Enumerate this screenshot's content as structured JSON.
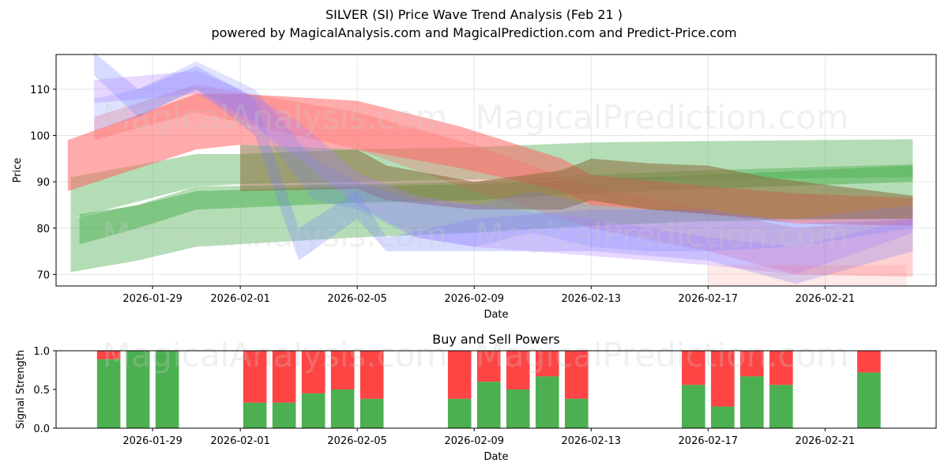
{
  "title": "SILVER (SI) Price Wave Trend Analysis (Feb 21 )",
  "subtitle": "powered by MagicalAnalysis.com and MagicalPrediction.com and Predict-Price.com",
  "watermarks": {
    "left": "MagicalAnalysis.com",
    "right": "MagicalPrediction.com"
  },
  "colors": {
    "green": "#4caf50",
    "red": "#ff4444",
    "band_green": "#4caf50",
    "band_red": "#ff6666",
    "band_brown": "#8b6b3a",
    "band_blue": "#6e7fff",
    "band_purple": "#b27fff",
    "grid": "#e6e6e6"
  },
  "chart_data": [
    {
      "type": "area",
      "title": "SILVER (SI) Price Wave Trend Analysis (Feb 21 )",
      "xlabel": "Date",
      "ylabel": "Price",
      "x_tick_labels": [
        "2026-01-29",
        "2026-02-01",
        "2026-02-05",
        "2026-02-09",
        "2026-02-13",
        "2026-02-17",
        "2026-02-21"
      ],
      "x_tick_days": [
        3,
        6,
        10,
        14,
        18,
        22,
        26
      ],
      "y_ticks": [
        70,
        80,
        90,
        100,
        110
      ],
      "xlim_days": [
        -0.3,
        29.8
      ],
      "ylim": [
        67.5,
        117.5
      ],
      "x_day0": "2026-01-26",
      "series": [
        {
          "name": "green-wide-upper",
          "color": "green",
          "opacity": 0.42,
          "x": [
            0.2,
            4.5,
            6,
            10,
            14,
            18,
            22,
            29
          ],
          "upper": [
            91,
            96,
            96,
            97,
            97.5,
            98.5,
            98.8,
            99.2
          ],
          "lower": [
            82,
            89,
            89.5,
            90,
            90.5,
            90.5,
            90.5,
            91
          ]
        },
        {
          "name": "green-wide-lower",
          "color": "green",
          "opacity": 0.42,
          "x": [
            0.2,
            2.5,
            4.5,
            10,
            14,
            18,
            22,
            29
          ],
          "upper": [
            82,
            85,
            89,
            89.5,
            90,
            91.5,
            92.5,
            93.8
          ],
          "lower": [
            70.5,
            73,
            76,
            78,
            79,
            80.5,
            81.5,
            82
          ]
        },
        {
          "name": "green-mid",
          "color": "green",
          "opacity": 0.5,
          "x": [
            0.5,
            2.5,
            4.5,
            10,
            14,
            18,
            22,
            29
          ],
          "upper": [
            83,
            85,
            88,
            89,
            89.5,
            90.5,
            91.5,
            93.5
          ],
          "lower": [
            76.5,
            80,
            84,
            85.5,
            86,
            87.5,
            88.5,
            90
          ]
        },
        {
          "name": "red-high",
          "color": "band_red",
          "opacity": 0.55,
          "x": [
            0.1,
            4.5,
            6,
            10,
            13.5,
            17,
            18,
            22,
            25,
            29
          ],
          "upper": [
            99,
            109,
            109,
            107.5,
            102,
            95,
            91.5,
            89,
            87.5,
            86.5
          ],
          "lower": [
            88,
            97,
            98,
            97,
            93,
            88,
            85,
            83,
            81,
            80.5
          ]
        },
        {
          "name": "red-low",
          "color": "band_red",
          "opacity": 0.3,
          "x": [
            1,
            4.5,
            10,
            14,
            18,
            22,
            25,
            29
          ],
          "upper": [
            104,
            111,
            105,
            98,
            89,
            84,
            80,
            82
          ],
          "lower": [
            99,
            105,
            97,
            88,
            80,
            75,
            70,
            69.5
          ]
        },
        {
          "name": "brown",
          "color": "band_brown",
          "opacity": 0.55,
          "x": [
            6,
            10,
            11,
            14,
            17,
            18,
            20,
            22,
            24,
            29
          ],
          "upper": [
            98,
            97,
            93.5,
            90,
            92.5,
            95,
            94,
            93.5,
            91,
            87
          ],
          "lower": [
            88,
            88.5,
            86,
            84,
            84,
            86,
            84,
            83,
            82,
            82
          ]
        },
        {
          "name": "blue-drop",
          "color": "band_blue",
          "opacity": 0.28,
          "x": [
            1,
            2.5,
            4.5,
            6.5,
            8,
            10,
            11,
            14,
            18,
            22,
            25,
            29
          ],
          "upper": [
            118,
            110,
            115,
            108,
            80,
            88,
            78,
            82,
            84,
            84,
            81,
            82
          ],
          "lower": [
            113,
            104,
            110,
            100,
            73,
            82,
            75,
            75,
            75,
            73,
            68,
            75
          ]
        },
        {
          "name": "purple",
          "color": "band_purple",
          "opacity": 0.3,
          "x": [
            1,
            4.5,
            6,
            8,
            10,
            12,
            14,
            18,
            20,
            22,
            25,
            29
          ],
          "upper": [
            112,
            114,
            110,
            103,
            92,
            87,
            85,
            82,
            80,
            78,
            76,
            82
          ],
          "lower": [
            107,
            109,
            104,
            95,
            85,
            78,
            76,
            74,
            73,
            72,
            70,
            79
          ]
        },
        {
          "name": "grey-cluster",
          "color": "band_blue",
          "opacity": 0.22,
          "x": [
            1,
            2.5,
            4.5,
            6.5,
            8.5,
            10,
            12,
            14,
            16,
            18,
            20,
            22,
            25,
            29
          ],
          "upper": [
            108,
            110,
            116,
            110,
            95,
            90,
            86,
            85,
            88,
            85,
            84,
            83,
            82,
            85
          ],
          "lower": [
            101,
            104,
            110,
            103,
            86,
            84,
            78,
            76,
            79,
            76,
            75,
            75,
            76,
            80
          ]
        },
        {
          "name": "pink-low",
          "color": "band_red",
          "opacity": 0.14,
          "x": [
            22,
            25,
            28.8
          ],
          "upper": [
            72,
            72,
            72
          ],
          "lower": [
            67.5,
            67.5,
            67.5
          ]
        }
      ]
    },
    {
      "type": "bar",
      "title": "Buy and Sell Powers",
      "xlabel": "Date",
      "ylabel": "Signal Strength",
      "x_tick_labels": [
        "2026-01-29",
        "2026-02-01",
        "2026-02-05",
        "2026-02-09",
        "2026-02-13",
        "2026-02-17",
        "2026-02-21"
      ],
      "x_tick_days": [
        3,
        6,
        10,
        14,
        18,
        22,
        26
      ],
      "y_ticks": [
        0.0,
        0.5,
        1.0
      ],
      "y_tick_labels": [
        "0.0",
        "0.5",
        "1.0"
      ],
      "xlim_days": [
        -0.3,
        29.8
      ],
      "ylim": [
        0,
        1.0
      ],
      "bars": [
        {
          "day": 1.5,
          "buy": 0.89,
          "sell": 0.11
        },
        {
          "day": 2.5,
          "buy": 1.0,
          "sell": 0.0
        },
        {
          "day": 3.5,
          "buy": 1.0,
          "sell": 0.0
        },
        {
          "day": 6.5,
          "buy": 0.33,
          "sell": 0.67
        },
        {
          "day": 7.5,
          "buy": 0.33,
          "sell": 0.67
        },
        {
          "day": 8.5,
          "buy": 0.45,
          "sell": 0.55
        },
        {
          "day": 9.5,
          "buy": 0.5,
          "sell": 0.5
        },
        {
          "day": 10.5,
          "buy": 0.38,
          "sell": 0.62
        },
        {
          "day": 13.5,
          "buy": 0.38,
          "sell": 0.62
        },
        {
          "day": 14.5,
          "buy": 0.6,
          "sell": 0.4
        },
        {
          "day": 15.5,
          "buy": 0.5,
          "sell": 0.5
        },
        {
          "day": 16.5,
          "buy": 0.67,
          "sell": 0.33
        },
        {
          "day": 17.5,
          "buy": 0.38,
          "sell": 0.62
        },
        {
          "day": 21.5,
          "buy": 0.56,
          "sell": 0.44
        },
        {
          "day": 22.5,
          "buy": 0.28,
          "sell": 0.72
        },
        {
          "day": 23.5,
          "buy": 0.67,
          "sell": 0.33
        },
        {
          "day": 24.5,
          "buy": 0.56,
          "sell": 0.44
        },
        {
          "day": 27.5,
          "buy": 0.72,
          "sell": 0.28
        }
      ]
    }
  ]
}
